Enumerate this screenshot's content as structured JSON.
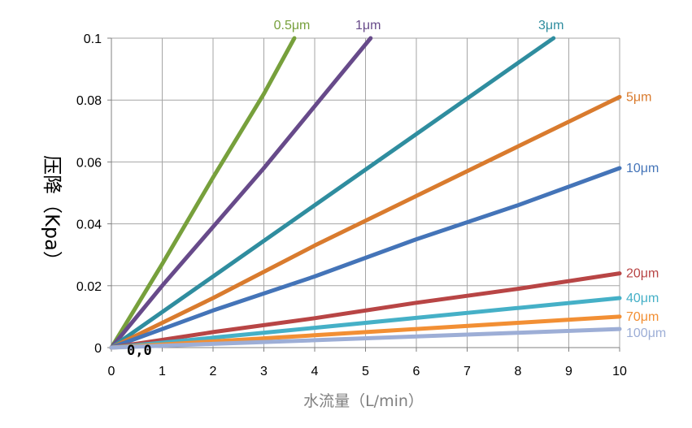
{
  "chart_data": {
    "type": "line",
    "xlabel": "水流量（L/min）",
    "ylabel": "压降（Kpa）",
    "xlim": [
      0,
      10
    ],
    "ylim": [
      0,
      0.1
    ],
    "x_ticks": [
      "0",
      "1",
      "2",
      "3",
      "4",
      "5",
      "6",
      "7",
      "8",
      "9",
      "10"
    ],
    "y_ticks": [
      "0",
      "0.02",
      "0.04",
      "0.06",
      "0.08",
      "0.1"
    ],
    "grid": true,
    "origin_annotation": "0,0",
    "series": [
      {
        "name": "0.5μm",
        "color": "#77a03c",
        "x": [
          0,
          1,
          2,
          3,
          3.6
        ],
        "y": [
          0,
          0.027,
          0.055,
          0.082,
          0.1
        ]
      },
      {
        "name": "1μm",
        "color": "#674a8a",
        "x": [
          0,
          1,
          2,
          3,
          4,
          5.1
        ],
        "y": [
          0,
          0.02,
          0.039,
          0.058,
          0.078,
          0.1
        ]
      },
      {
        "name": "3μm",
        "color": "#2f8d9f",
        "x": [
          0,
          2,
          4,
          6,
          8,
          8.7
        ],
        "y": [
          0,
          0.023,
          0.046,
          0.069,
          0.092,
          0.1
        ]
      },
      {
        "name": "5μm",
        "color": "#d97b2e",
        "x": [
          0,
          2,
          4,
          6,
          8,
          10
        ],
        "y": [
          0,
          0.016,
          0.033,
          0.049,
          0.065,
          0.081
        ]
      },
      {
        "name": "10μm",
        "color": "#4474b8",
        "x": [
          0,
          2,
          4,
          6,
          8,
          10
        ],
        "y": [
          0,
          0.012,
          0.023,
          0.035,
          0.046,
          0.058
        ]
      },
      {
        "name": "20μm",
        "color": "#b84545",
        "x": [
          0,
          2,
          4,
          6,
          8,
          10
        ],
        "y": [
          0,
          0.005,
          0.0095,
          0.0145,
          0.019,
          0.024
        ]
      },
      {
        "name": "40μm",
        "color": "#45b0c7",
        "x": [
          0,
          2,
          4,
          6,
          8,
          10
        ],
        "y": [
          0,
          0.0032,
          0.0064,
          0.0096,
          0.0128,
          0.016
        ]
      },
      {
        "name": "70μm",
        "color": "#f28f34",
        "x": [
          0,
          2,
          4,
          6,
          8,
          10
        ],
        "y": [
          0,
          0.002,
          0.004,
          0.006,
          0.008,
          0.01
        ]
      },
      {
        "name": "100μm",
        "color": "#9daed6",
        "x": [
          0,
          2,
          4,
          6,
          8,
          10
        ],
        "y": [
          0,
          0.0012,
          0.0024,
          0.0036,
          0.0048,
          0.006
        ]
      }
    ]
  }
}
